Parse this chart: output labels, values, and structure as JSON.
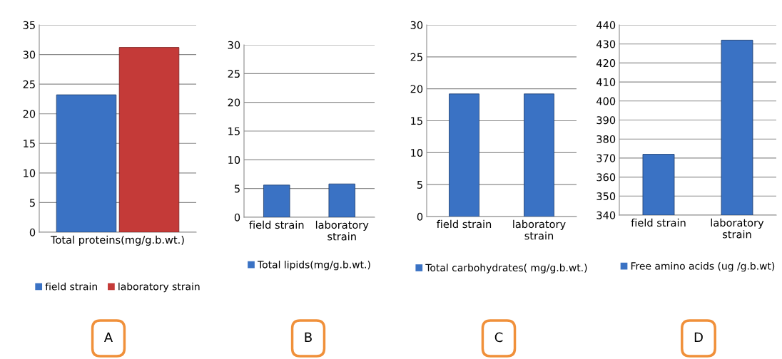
{
  "chart_data": [
    {
      "type": "bar",
      "categories": [
        "Total proteins(mg/g.b.wt.)"
      ],
      "series": [
        {
          "name": "field strain",
          "color": "#3a72c4",
          "values": [
            23.2
          ]
        },
        {
          "name": "laboratory strain",
          "color": "#c43a38",
          "values": [
            31.2
          ]
        }
      ],
      "ylim": [
        0,
        35
      ],
      "yticks": [
        0,
        5,
        10,
        15,
        20,
        25,
        30,
        35
      ],
      "grid": "y",
      "legend": "bottom",
      "annotations": [
        "A"
      ]
    },
    {
      "type": "bar",
      "categories": [
        "field strain",
        "laboratory\nstrain"
      ],
      "series": [
        {
          "name": "Total lipids(mg/g.b.wt.)",
          "color": "#3a72c4",
          "values": [
            5.6,
            5.8
          ]
        }
      ],
      "ylim": [
        0,
        30
      ],
      "yticks": [
        0,
        5,
        10,
        15,
        20,
        25,
        30
      ],
      "grid": "y",
      "legend": "bottom",
      "annotations": [
        "B"
      ]
    },
    {
      "type": "bar",
      "categories": [
        "field strain",
        "laboratory\nstrain"
      ],
      "series": [
        {
          "name": "Total carbohydrates( mg/g.b.wt.)",
          "color": "#3a72c4",
          "values": [
            19.2,
            19.2
          ]
        }
      ],
      "ylim": [
        0,
        30
      ],
      "yticks": [
        0,
        5,
        10,
        15,
        20,
        25,
        30
      ],
      "grid": "y",
      "legend": "bottom",
      "annotations": [
        "C"
      ]
    },
    {
      "type": "bar",
      "categories": [
        "field strain",
        "laboratory\nstrain"
      ],
      "series": [
        {
          "name": "Free amino acids (ug /g.b.wt)",
          "color": "#3a72c4",
          "values": [
            372,
            432
          ]
        }
      ],
      "ylim": [
        340,
        440
      ],
      "yticks": [
        340,
        350,
        360,
        370,
        380,
        390,
        400,
        410,
        420,
        430,
        440
      ],
      "grid": "y",
      "legend": "bottom",
      "annotations": [
        "D"
      ]
    }
  ]
}
